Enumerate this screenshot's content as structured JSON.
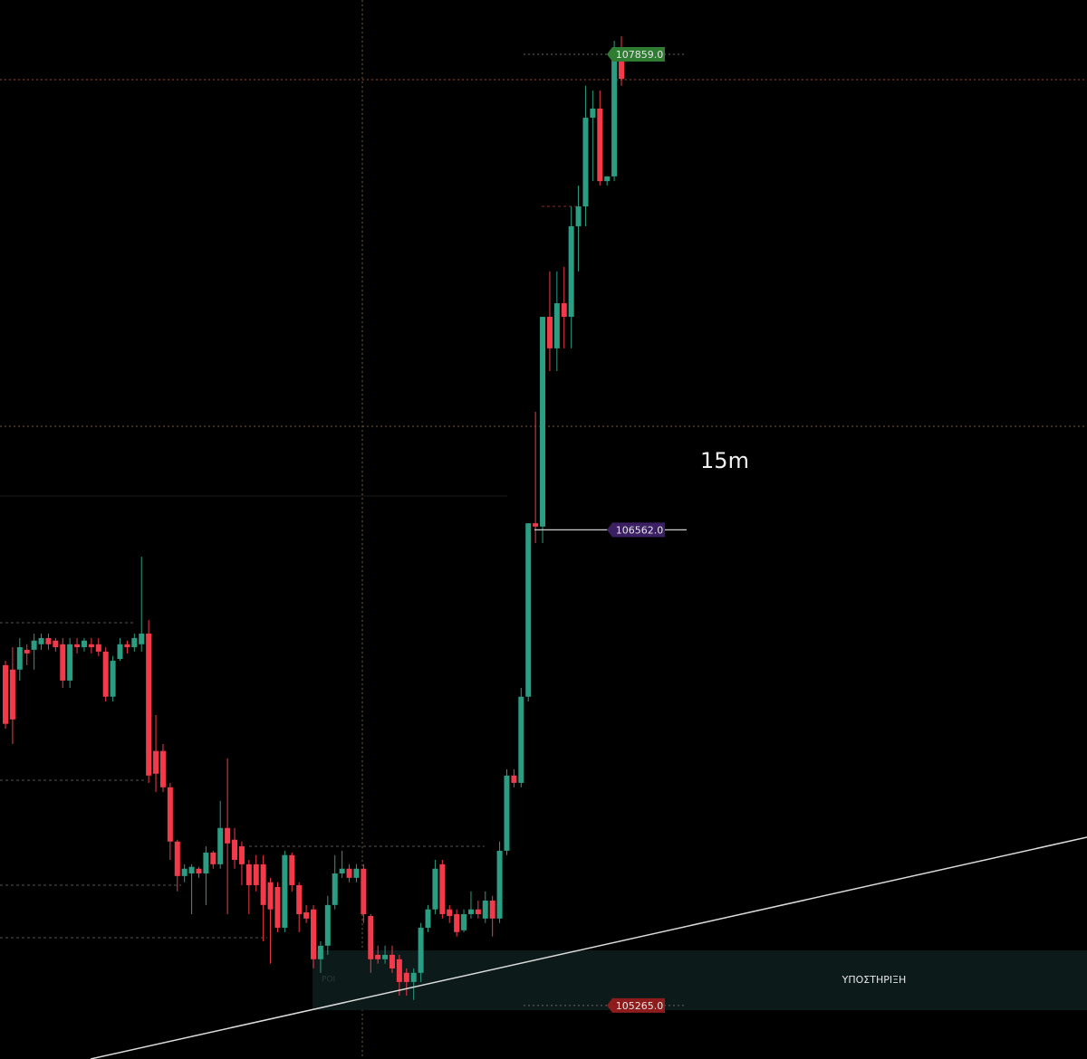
{
  "chart_data": {
    "type": "candlestick",
    "ylim": [
      105119,
      108007
    ],
    "up_color": "#2a9d82",
    "down_color": "#f23a4b",
    "open": [
      106193,
      106181,
      106181,
      106235,
      106235,
      106250,
      106267,
      106260,
      106250,
      106151,
      106250,
      106242,
      106250,
      106250,
      106230,
      106107,
      106210,
      106250,
      106242,
      106250,
      106279,
      105959,
      105959,
      105860,
      105712,
      105618,
      105625,
      105638,
      105625,
      105682,
      105650,
      105749,
      105717,
      105699,
      105650,
      105650,
      105650,
      105601,
      105588,
      105477,
      105675,
      105593,
      105519,
      105527,
      105391,
      105428,
      105539,
      105625,
      105638,
      105613,
      105638,
      105509,
      105403,
      105391,
      105403,
      105391,
      105354,
      105329,
      105354,
      105477,
      105527,
      105650,
      105527,
      105514,
      105470,
      105514,
      105527,
      105502,
      105551,
      105502,
      105687,
      105892,
      105872,
      106107,
      106580,
      106571,
      107143,
      107057,
      107180,
      107143,
      107390,
      107444,
      107686,
      107711,
      107513,
      107526,
      107859
    ],
    "high": [
      106205,
      106242,
      106267,
      106250,
      106279,
      106279,
      106279,
      106267,
      106267,
      106267,
      106267,
      106267,
      106267,
      106267,
      106242,
      106218,
      106267,
      106260,
      106279,
      106489,
      106316,
      106057,
      105978,
      105872,
      105717,
      105650,
      105650,
      105643,
      105699,
      105687,
      105823,
      105939,
      105749,
      105712,
      105662,
      105675,
      105675,
      105613,
      105601,
      105687,
      105682,
      105601,
      105539,
      105539,
      105440,
      105564,
      105675,
      105687,
      105650,
      105650,
      105650,
      105514,
      105428,
      105428,
      105428,
      105403,
      105366,
      105366,
      105490,
      105539,
      105662,
      105662,
      105539,
      105527,
      105527,
      105576,
      105551,
      105576,
      105564,
      105712,
      105909,
      105909,
      106131,
      106580,
      106884,
      107143,
      107267,
      107267,
      107279,
      107444,
      107501,
      107773,
      107760,
      107760,
      107526,
      107896,
      107908
    ],
    "low": [
      106020,
      105978,
      106151,
      106193,
      106181,
      106235,
      106235,
      106230,
      106131,
      106131,
      106225,
      106230,
      106225,
      106218,
      106094,
      106094,
      106205,
      106225,
      106230,
      106230,
      105872,
      105847,
      105847,
      105662,
      105576,
      105601,
      105514,
      105613,
      105539,
      105638,
      105638,
      105514,
      105638,
      105593,
      105514,
      105576,
      105440,
      105379,
      105465,
      105465,
      105576,
      105465,
      105490,
      105366,
      105354,
      105403,
      105527,
      105613,
      105601,
      105601,
      105490,
      105354,
      105379,
      105379,
      105354,
      105292,
      105292,
      105280,
      105329,
      105465,
      105514,
      105502,
      105490,
      105453,
      105465,
      105502,
      105502,
      105490,
      105453,
      105490,
      105675,
      105860,
      105860,
      106094,
      106526,
      106526,
      106995,
      106995,
      107057,
      107057,
      107267,
      107390,
      107513,
      107501,
      107501,
      107513,
      107773
    ],
    "close": [
      106033,
      106045,
      106242,
      106225,
      106260,
      106267,
      106250,
      106242,
      106151,
      106250,
      106242,
      106260,
      106242,
      106230,
      106107,
      106205,
      106250,
      106242,
      106267,
      106279,
      105892,
      105897,
      105860,
      105712,
      105618,
      105638,
      105643,
      105625,
      105682,
      105650,
      105749,
      105707,
      105662,
      105650,
      105593,
      105593,
      105539,
      105527,
      105477,
      105675,
      105593,
      105514,
      105502,
      105391,
      105428,
      105539,
      105625,
      105638,
      105613,
      105638,
      105514,
      105391,
      105391,
      105403,
      105366,
      105329,
      105329,
      105354,
      105477,
      105527,
      105638,
      105514,
      105509,
      105465,
      105514,
      105527,
      105514,
      105551,
      105502,
      105687,
      105892,
      105872,
      106107,
      106580,
      106571,
      107143,
      107057,
      107180,
      107143,
      107390,
      107444,
      107686,
      107711,
      107513,
      107526,
      107859,
      107792
    ],
    "price_lines": [
      {
        "value": 107859,
        "label": "107859.0",
        "color": "#2e7d32"
      },
      {
        "value": 106562,
        "label": "106562.0",
        "color": "#3b1f63"
      },
      {
        "value": 105265,
        "label": "105265.0",
        "color": "#8e1c1c"
      }
    ],
    "annotations": {
      "timeframe": "15m",
      "zone": "ΥΠΟΣΤΗΡΙΞΗ",
      "poi": "POI"
    }
  }
}
